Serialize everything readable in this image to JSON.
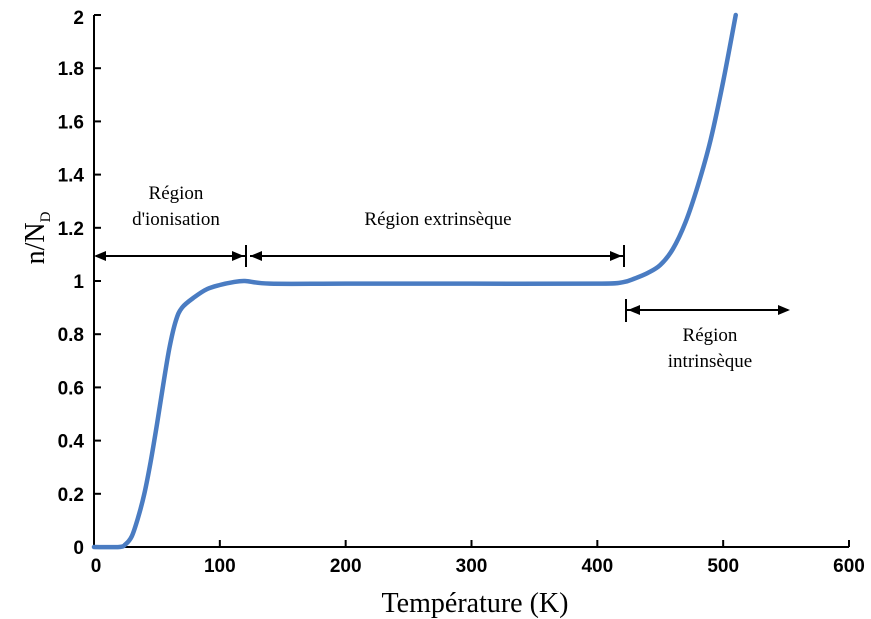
{
  "chart_data": {
    "type": "line",
    "xlabel": "Température (K)",
    "ylabel_main": "n/N",
    "ylabel_sub": "D",
    "xlim": [
      0,
      600
    ],
    "ylim": [
      0,
      2
    ],
    "x_ticks": [
      "0",
      "100",
      "200",
      "300",
      "400",
      "500",
      "600"
    ],
    "y_ticks": [
      "0",
      "0.2",
      "0.4",
      "0.6",
      "0.8",
      "1",
      "1.2",
      "1.4",
      "1.6",
      "1.8",
      "2"
    ],
    "grid": false,
    "series_color": "#4a7cc2",
    "series": [
      {
        "x": [
          0,
          20,
          25,
          30,
          35,
          40,
          45,
          50,
          55,
          60,
          65,
          70,
          80,
          90,
          100,
          110,
          120,
          140,
          200,
          300,
          400,
          420,
          430,
          440,
          450,
          460,
          470,
          480,
          490,
          500,
          510
        ],
        "y": [
          0,
          0,
          0.01,
          0.04,
          0.11,
          0.2,
          0.32,
          0.46,
          0.61,
          0.75,
          0.85,
          0.9,
          0.94,
          0.97,
          0.985,
          0.995,
          1.0,
          0.99,
          0.99,
          0.99,
          0.99,
          0.995,
          1.01,
          1.03,
          1.06,
          1.12,
          1.22,
          1.36,
          1.53,
          1.75,
          2.0
        ]
      }
    ],
    "annotations": {
      "ionisation_line1": "Région",
      "ionisation_line2": "d'ionisation",
      "extrinseque": "Région extrinsèque",
      "intrinseque_line1": "Région",
      "intrinseque_line2": "intrinsèque"
    }
  }
}
